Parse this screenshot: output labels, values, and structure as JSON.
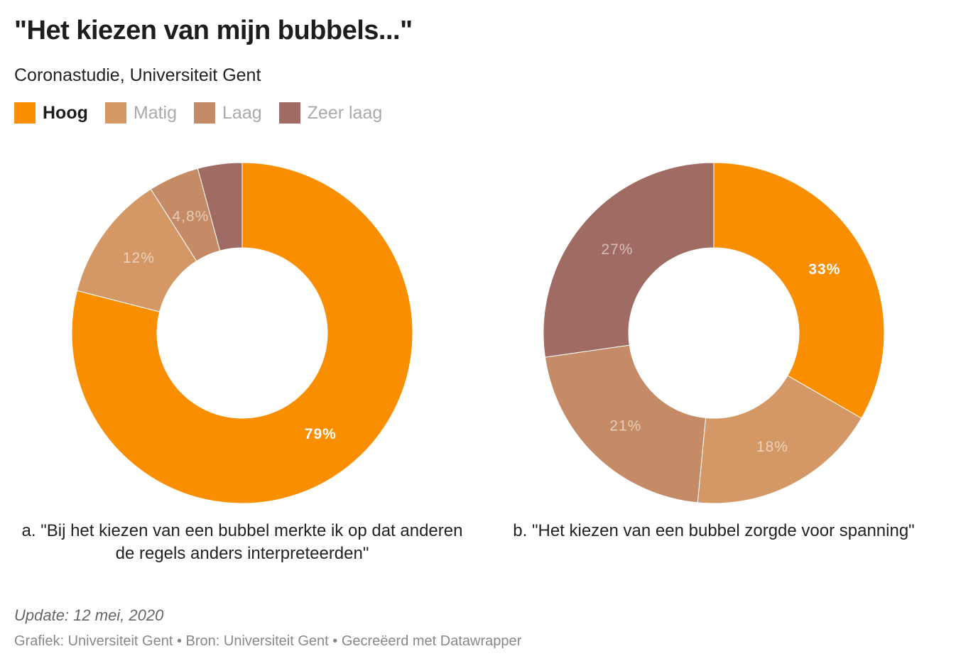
{
  "title": "\"Het kiezen van mijn bubbels...\"",
  "subtitle": "Coronastudie, Universiteit Gent",
  "legend": [
    {
      "label": "Hoog",
      "color": "#f98e00"
    },
    {
      "label": "Matig",
      "color": "#d49866"
    },
    {
      "label": "Laag",
      "color": "#c48b66"
    },
    {
      "label": "Zeer laag",
      "color": "#a06b63"
    }
  ],
  "chart_data": [
    {
      "type": "pie",
      "variant": "donut",
      "caption": "a. \"Bij het kiezen van een bubbel merkte ik op dat anderen de regels anders interpreteerden\"",
      "categories": [
        "Hoog",
        "Matig",
        "Laag",
        "Zeer laag"
      ],
      "values": [
        79,
        12,
        4.8,
        4.2
      ],
      "labels": [
        "79%",
        "12%",
        "4,8%",
        ""
      ]
    },
    {
      "type": "pie",
      "variant": "donut",
      "caption": "b. \"Het kiezen van een bubbel zorgde voor spanning\"",
      "categories": [
        "Hoog",
        "Matig",
        "Laag",
        "Zeer laag"
      ],
      "values": [
        33,
        18,
        21,
        27
      ],
      "labels": [
        "33%",
        "18%",
        "21%",
        "27%"
      ]
    }
  ],
  "footer": {
    "update": "Update: 12 mei, 2020",
    "source": "Grafiek: Universiteit Gent • Bron: Universiteit Gent • Gecreëerd met Datawrapper"
  }
}
